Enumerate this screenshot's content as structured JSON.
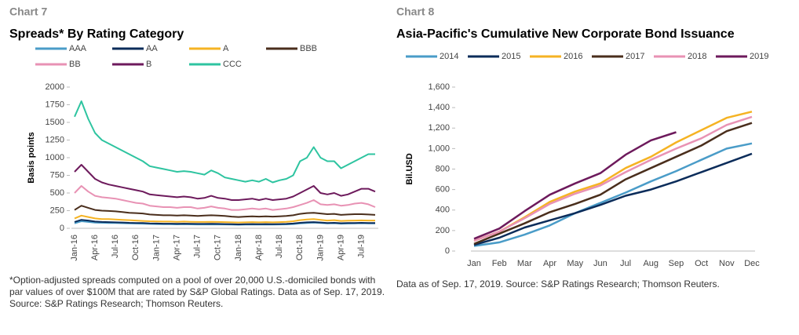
{
  "chart_data": [
    {
      "type": "line",
      "label": "Chart 7",
      "title": "Spreads* By Rating Category",
      "ylabel": "Basis points",
      "note": "*Option-adjusted spreads computed on a pool of over 20,000 U.S.-domiciled bonds with par values of over $100M that are rated by S&P Global Ratings. Data as of Sep. 17, 2019. Source: S&P Ratings Research; Thomson Reuters.",
      "categories": [
        "Jan-16",
        null,
        null,
        "Apr-16",
        null,
        null,
        "Jul-16",
        null,
        null,
        "Oct-16",
        null,
        null,
        "Jan-17",
        null,
        null,
        "Apr-17",
        null,
        null,
        "Jul-17",
        null,
        null,
        "Oct-17",
        null,
        null,
        "Jan-18",
        null,
        null,
        "Apr-18",
        null,
        null,
        "Jul-18",
        null,
        null,
        "Oct-18",
        null,
        null,
        "Jan-19",
        null,
        null,
        "Apr-19",
        null,
        null,
        "Jul-19",
        null,
        null
      ],
      "ylim": [
        0,
        2000
      ],
      "yticks": [
        0,
        250,
        500,
        750,
        1000,
        1250,
        1500,
        1750,
        2000
      ],
      "series": [
        {
          "name": "AAA",
          "color": "#4a9cc8",
          "values": [
            70,
            100,
            90,
            80,
            78,
            76,
            74,
            72,
            70,
            68,
            66,
            62,
            60,
            58,
            58,
            56,
            58,
            56,
            55,
            55,
            56,
            55,
            54,
            52,
            50,
            52,
            54,
            52,
            54,
            52,
            54,
            56,
            60,
            70,
            76,
            80,
            74,
            70,
            72,
            66,
            68,
            70,
            72,
            70,
            70
          ]
        },
        {
          "name": "AA",
          "color": "#0b2c5a",
          "values": [
            90,
            120,
            110,
            95,
            90,
            88,
            85,
            82,
            78,
            76,
            74,
            70,
            68,
            66,
            66,
            64,
            66,
            64,
            62,
            62,
            64,
            62,
            60,
            58,
            56,
            58,
            60,
            58,
            60,
            58,
            60,
            62,
            68,
            78,
            84,
            88,
            82,
            76,
            78,
            72,
            74,
            76,
            78,
            76,
            76
          ]
        },
        {
          "name": "A",
          "color": "#f5b323",
          "values": [
            140,
            180,
            160,
            140,
            130,
            130,
            125,
            120,
            115,
            110,
            105,
            100,
            98,
            95,
            95,
            92,
            95,
            92,
            90,
            90,
            92,
            90,
            88,
            85,
            82,
            85,
            88,
            85,
            88,
            85,
            88,
            92,
            100,
            115,
            125,
            130,
            120,
            110,
            115,
            105,
            108,
            110,
            112,
            110,
            110
          ]
        },
        {
          "name": "BBB",
          "color": "#4a2e1c",
          "values": [
            260,
            320,
            290,
            260,
            250,
            245,
            240,
            230,
            220,
            215,
            210,
            195,
            190,
            185,
            185,
            180,
            185,
            180,
            175,
            180,
            185,
            180,
            175,
            165,
            160,
            165,
            170,
            165,
            170,
            165,
            170,
            175,
            185,
            205,
            215,
            220,
            210,
            200,
            205,
            190,
            195,
            200,
            200,
            195,
            190
          ]
        },
        {
          "name": "BB",
          "color": "#e892b4",
          "values": [
            500,
            600,
            520,
            460,
            440,
            430,
            420,
            400,
            380,
            360,
            350,
            320,
            310,
            300,
            300,
            290,
            300,
            300,
            280,
            290,
            310,
            290,
            280,
            260,
            260,
            270,
            280,
            270,
            280,
            260,
            270,
            280,
            300,
            330,
            360,
            400,
            340,
            330,
            340,
            320,
            330,
            350,
            360,
            340,
            300
          ]
        },
        {
          "name": "B",
          "color": "#6d1a5c",
          "values": [
            800,
            900,
            800,
            700,
            650,
            620,
            600,
            580,
            560,
            540,
            520,
            480,
            470,
            460,
            450,
            440,
            450,
            440,
            420,
            430,
            460,
            430,
            420,
            400,
            400,
            410,
            420,
            400,
            420,
            400,
            410,
            420,
            450,
            500,
            550,
            600,
            500,
            480,
            500,
            460,
            480,
            520,
            560,
            560,
            520
          ]
        },
        {
          "name": "CCC",
          "color": "#2ec4a0",
          "values": [
            1580,
            1800,
            1550,
            1350,
            1250,
            1200,
            1150,
            1100,
            1050,
            1000,
            950,
            880,
            860,
            840,
            820,
            800,
            810,
            800,
            780,
            760,
            820,
            780,
            720,
            700,
            680,
            660,
            680,
            660,
            700,
            650,
            680,
            700,
            750,
            950,
            1000,
            1150,
            1000,
            950,
            950,
            850,
            900,
            950,
            1000,
            1050,
            1050
          ]
        }
      ]
    },
    {
      "type": "line",
      "label": "Chart 8",
      "title": "Asia-Pacific's Cumulative New Corporate Bond Issuance",
      "ylabel": "Bil.USD",
      "note": "Data as of Sep. 17, 2019. Source: S&P Ratings Research; Thomson Reuters.",
      "categories": [
        "Jan",
        "Feb",
        "Mar",
        "Apr",
        "May",
        "Jun",
        "Jul",
        "Aug",
        "Sep",
        "Oct",
        "Nov",
        "Dec"
      ],
      "ylim": [
        0,
        1600
      ],
      "yticks": [
        0,
        200,
        400,
        600,
        800,
        {
          "value": 1000,
          "label": "1,000"
        },
        {
          "value": 1200,
          "label": "1,200"
        },
        {
          "value": 1400,
          "label": "1,400"
        },
        {
          "value": 1600,
          "label": "1,600"
        }
      ],
      "series": [
        {
          "name": "2014",
          "color": "#4a9cc8",
          "values": [
            50,
            85,
            160,
            250,
            370,
            470,
            570,
            680,
            780,
            890,
            1000,
            1050
          ]
        },
        {
          "name": "2015",
          "color": "#0b2c5a",
          "values": [
            60,
            130,
            230,
            300,
            370,
            450,
            540,
            600,
            680,
            770,
            860,
            950
          ]
        },
        {
          "name": "2016",
          "color": "#f5b323",
          "values": [
            100,
            190,
            330,
            480,
            580,
            660,
            810,
            920,
            1060,
            1180,
            1300,
            1360
          ]
        },
        {
          "name": "2017",
          "color": "#4a2e1c",
          "values": [
            70,
            170,
            270,
            380,
            460,
            550,
            700,
            810,
            920,
            1030,
            1170,
            1250
          ]
        },
        {
          "name": "2018",
          "color": "#e892b4",
          "values": [
            100,
            190,
            320,
            460,
            560,
            640,
            770,
            890,
            1000,
            1100,
            1230,
            1310
          ]
        },
        {
          "name": "2019",
          "color": "#6d1a5c",
          "values": [
            120,
            220,
            390,
            550,
            660,
            760,
            940,
            1080,
            1160,
            null,
            null,
            null
          ]
        }
      ]
    }
  ]
}
